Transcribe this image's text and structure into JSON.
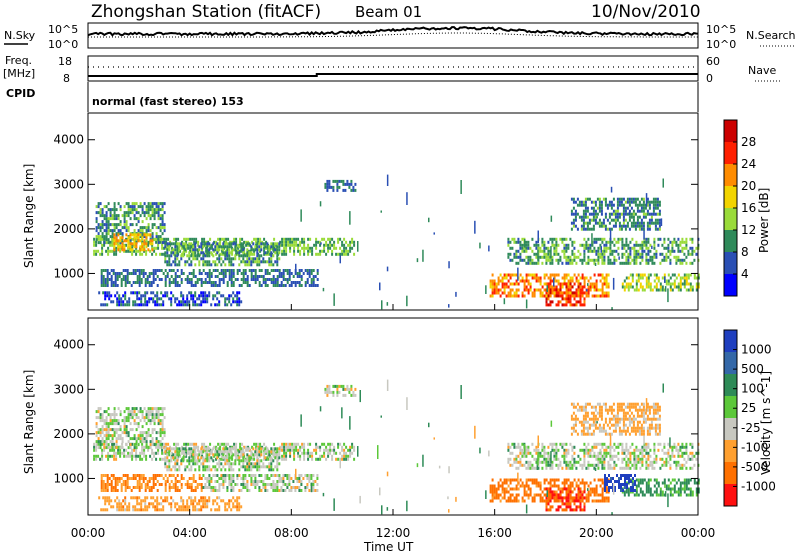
{
  "header": {
    "station": "Zhongshan Station (fitACF)",
    "beam": "Beam 01",
    "date": "10/Nov/2010"
  },
  "nsky_panel": {
    "left_label": "N.Sky",
    "right_label": "N.Search",
    "left_ticks": [
      "10^5",
      "10^0"
    ],
    "right_ticks": [
      "10^5",
      "10^0"
    ]
  },
  "freq_panel": {
    "left_label_1": "Freq.",
    "left_label_2": "[MHz]",
    "right_label": "Nave",
    "left_ticks": [
      "18",
      "8"
    ],
    "right_ticks": [
      "60",
      "0"
    ]
  },
  "cpid_panel": {
    "label": "CPID",
    "mode_text": "normal (fast stereo) 153"
  },
  "power_colorbar": {
    "title": "Power [dB]",
    "ticks": [
      "28",
      "24",
      "20",
      "16",
      "12",
      "8",
      "4"
    ],
    "colors": [
      "#0000ff",
      "#2a4fb4",
      "#2f8a5a",
      "#9adb3a",
      "#f2d400",
      "#ff8c00",
      "#ff1f00",
      "#cc0000"
    ]
  },
  "velocity_colorbar": {
    "title": "Velocity [m s^-1]",
    "ticks": [
      "1000",
      "500",
      "100",
      "25",
      "-25",
      "-100",
      "-500",
      "-1000"
    ],
    "colors": [
      "#1f3fbf",
      "#3468a8",
      "#2e8b57",
      "#5cc83a",
      "#c8c8c0",
      "#ffa030",
      "#ff7000",
      "#ff1010"
    ]
  },
  "x_axis": {
    "label": "Time UT",
    "ticks": [
      "00:00",
      "04:00",
      "08:00",
      "12:00",
      "16:00",
      "20:00",
      "00:00"
    ]
  },
  "y_axis": {
    "label": "Slant Range [km]",
    "ticks": [
      "1000",
      "2000",
      "3000",
      "4000"
    ]
  },
  "chart_data": [
    {
      "type": "heatmap",
      "title": "Power",
      "xlabel": "Time UT",
      "ylabel": "Slant Range [km]",
      "xlim": [
        0,
        24
      ],
      "ylim": [
        180,
        4600
      ],
      "colorbar_label": "Power [dB]",
      "colorbar_ticks": [
        4,
        8,
        12,
        16,
        20,
        24,
        28
      ],
      "blobs": [
        {
          "t0": 0.2,
          "t1": 10.5,
          "r0": 1400,
          "r1": 1800,
          "p": 12
        },
        {
          "t0": 0.3,
          "t1": 3.0,
          "r0": 1700,
          "r1": 2600,
          "p": 10
        },
        {
          "t0": 3.0,
          "t1": 7.5,
          "r0": 1200,
          "r1": 1700,
          "p": 10
        },
        {
          "t0": 0.5,
          "t1": 9.0,
          "r0": 700,
          "r1": 1100,
          "p": 8
        },
        {
          "t0": 0.4,
          "t1": 6.0,
          "r0": 300,
          "r1": 600,
          "p": 6
        },
        {
          "t0": 9.3,
          "t1": 10.5,
          "r0": 2850,
          "r1": 3100,
          "p": 8
        },
        {
          "t0": 15.8,
          "t1": 20.5,
          "r0": 500,
          "r1": 1000,
          "p": 22
        },
        {
          "t0": 18.0,
          "t1": 19.5,
          "r0": 300,
          "r1": 800,
          "p": 26
        },
        {
          "t0": 16.5,
          "t1": 24.0,
          "r0": 1200,
          "r1": 1800,
          "p": 11
        },
        {
          "t0": 19.0,
          "t1": 22.5,
          "r0": 2000,
          "r1": 2700,
          "p": 9
        },
        {
          "t0": 21.0,
          "t1": 24.0,
          "r0": 600,
          "r1": 1000,
          "p": 14
        },
        {
          "t0": 1.0,
          "t1": 2.5,
          "r0": 1500,
          "r1": 1900,
          "p": 20
        }
      ]
    },
    {
      "type": "heatmap",
      "title": "Velocity",
      "xlabel": "Time UT",
      "ylabel": "Slant Range [km]",
      "xlim": [
        0,
        24
      ],
      "ylim": [
        180,
        4600
      ],
      "colorbar_label": "Velocity [m s^-1]",
      "colorbar_ticks": [
        -1000,
        -500,
        -100,
        -25,
        25,
        100,
        500,
        1000
      ],
      "blobs": [
        {
          "t0": 0.2,
          "t1": 10.5,
          "r0": 1400,
          "r1": 1800,
          "v": 0
        },
        {
          "t0": 0.3,
          "t1": 3.0,
          "r0": 1700,
          "r1": 2600,
          "v": 0
        },
        {
          "t0": 3.0,
          "t1": 7.5,
          "r0": 1200,
          "r1": 1700,
          "v": 0
        },
        {
          "t0": 0.5,
          "t1": 4.5,
          "r0": 700,
          "r1": 1100,
          "v": -300
        },
        {
          "t0": 4.5,
          "t1": 9.0,
          "r0": 700,
          "r1": 1100,
          "v": 0
        },
        {
          "t0": 0.4,
          "t1": 6.0,
          "r0": 300,
          "r1": 600,
          "v": -200
        },
        {
          "t0": 9.3,
          "t1": 10.5,
          "r0": 2850,
          "r1": 3100,
          "v": 0
        },
        {
          "t0": 15.8,
          "t1": 20.5,
          "r0": 500,
          "r1": 1000,
          "v": -400
        },
        {
          "t0": 18.0,
          "t1": 19.5,
          "r0": 300,
          "r1": 800,
          "v": -700
        },
        {
          "t0": 16.5,
          "t1": 24.0,
          "r0": 1200,
          "r1": 1800,
          "v": 0
        },
        {
          "t0": 19.0,
          "t1": 22.5,
          "r0": 2000,
          "r1": 2700,
          "v": -150
        },
        {
          "t0": 21.0,
          "t1": 24.0,
          "r0": 600,
          "r1": 1000,
          "v": 150
        },
        {
          "t0": 20.3,
          "t1": 21.5,
          "r0": 700,
          "r1": 1100,
          "v": 800
        }
      ]
    }
  ]
}
